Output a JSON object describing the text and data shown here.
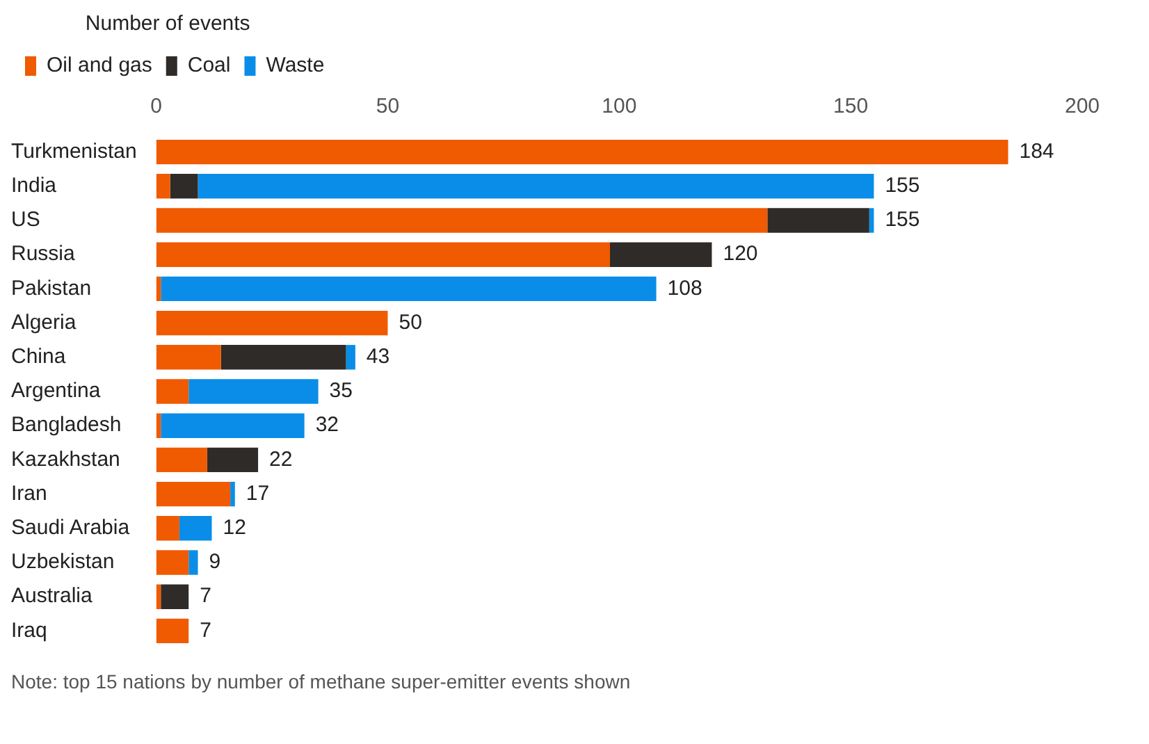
{
  "chart_data": {
    "type": "bar",
    "orientation": "horizontal",
    "stacked": true,
    "legend_title": "Number of events",
    "legend": "top left",
    "grid": false,
    "categories": [
      "Turkmenistan",
      "India",
      "US",
      "Russia",
      "Pakistan",
      "Algeria",
      "China",
      "Argentina",
      "Bangladesh",
      "Kazakhstan",
      "Iran",
      "Saudi Arabia",
      "Uzbekistan",
      "Australia",
      "Iraq"
    ],
    "series": [
      {
        "name": "Oil and gas",
        "color": "#f05a00",
        "values": [
          184,
          3,
          132,
          98,
          1,
          50,
          14,
          7,
          1,
          11,
          16,
          5,
          7,
          1,
          7
        ]
      },
      {
        "name": "Coal",
        "color": "#2e2b28",
        "values": [
          0,
          6,
          22,
          22,
          0,
          0,
          27,
          0,
          0,
          11,
          0,
          0,
          0,
          6,
          0
        ]
      },
      {
        "name": "Waste",
        "color": "#0a8de8",
        "values": [
          0,
          146,
          1,
          0,
          107,
          0,
          2,
          28,
          31,
          0,
          1,
          7,
          2,
          0,
          0
        ]
      }
    ],
    "totals": [
      "184",
      "155",
      "155",
      "120",
      "108",
      "50",
      "43",
      "35",
      "32",
      "22",
      "17",
      "12",
      "9",
      "7",
      "7"
    ],
    "xlim": [
      0,
      200
    ],
    "xticks": [
      0,
      50,
      100,
      150,
      200
    ],
    "annotations": [
      "Note: top 15 nations by number of methane super-emitter events shown"
    ]
  }
}
